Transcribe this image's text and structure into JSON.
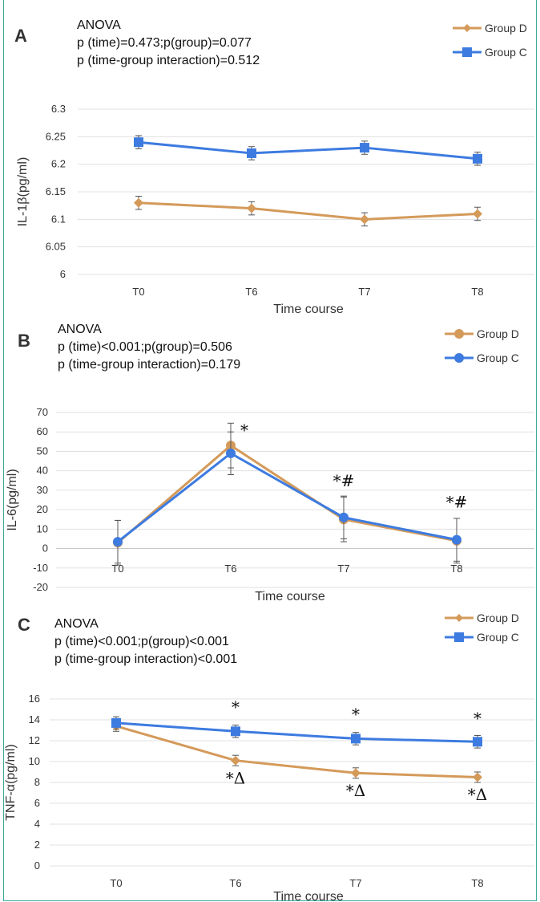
{
  "chart_data": [
    {
      "type": "line",
      "panel": "A",
      "anova": [
        "ANOVA",
        "p (time)=0.473;p(group)=0.077",
        "p (time-group interaction)=0.512"
      ],
      "categories": [
        "T0",
        "T6",
        "T7",
        "T8"
      ],
      "xlabel": "Time course",
      "ylabel": "IL-1β(pg/ml)",
      "ylim": [
        6,
        6.3
      ],
      "yticks": [
        "6",
        "6.05",
        "6.1",
        "6.15",
        "6.2",
        "6.25",
        "6.3"
      ],
      "grid": true,
      "legend_position": "top-right",
      "marker": "diamond-square",
      "series": [
        {
          "name": "Group D",
          "color": "#d49a5a",
          "values": [
            6.13,
            6.12,
            6.1,
            6.11
          ],
          "errors": [
            0.012,
            0.012,
            0.012,
            0.012
          ]
        },
        {
          "name": "Group C",
          "color": "#3d7be0",
          "values": [
            6.24,
            6.22,
            6.23,
            6.21
          ],
          "errors": [
            0.012,
            0.012,
            0.012,
            0.012
          ]
        }
      ],
      "annotations": []
    },
    {
      "type": "line",
      "panel": "B",
      "anova": [
        "ANOVA",
        "p (time)<0.001;p(group)=0.506",
        "p (time-group interaction)=0.179"
      ],
      "categories": [
        "T0",
        "T6",
        "T7",
        "T8"
      ],
      "xlabel": "Time course",
      "ylabel": "IL-6(pg/ml)",
      "ylim": [
        -20,
        70
      ],
      "yticks": [
        "-20",
        "-10",
        "0",
        "10",
        "20",
        "30",
        "40",
        "50",
        "60",
        "70"
      ],
      "grid": true,
      "legend_position": "top-right",
      "marker": "circle",
      "series": [
        {
          "name": "Group D",
          "color": "#d49a5a",
          "values": [
            3,
            53,
            15,
            4
          ],
          "errors": [
            11.5,
            11.5,
            11.5,
            11.5
          ]
        },
        {
          "name": "Group C",
          "color": "#3d7be0",
          "values": [
            3.5,
            49,
            16,
            4.5
          ],
          "errors": [
            11,
            11,
            11,
            11
          ]
        }
      ],
      "annotations": [
        {
          "category": "T6",
          "text": "*",
          "value": 58
        },
        {
          "category": "T7",
          "text": "*#",
          "value": 32
        },
        {
          "category": "T8",
          "text": "*#",
          "value": 21
        }
      ]
    },
    {
      "type": "line",
      "panel": "C",
      "anova": [
        "ANOVA",
        "p (time)<0.001;p(group)<0.001",
        "p (time-group interaction)<0.001"
      ],
      "categories": [
        "T0",
        "T6",
        "T7",
        "T8"
      ],
      "xlabel": "Time course",
      "ylabel": "TNF-α(pg/ml)",
      "ylim": [
        0,
        16
      ],
      "yticks": [
        "0",
        "2",
        "4",
        "6",
        "8",
        "10",
        "12",
        "14",
        "16"
      ],
      "grid": true,
      "legend_position": "top-right",
      "marker": "diamond-square",
      "series": [
        {
          "name": "Group D",
          "color": "#d49a5a",
          "values": [
            13.4,
            10.1,
            8.9,
            8.5
          ],
          "errors": [
            0.5,
            0.5,
            0.5,
            0.5
          ]
        },
        {
          "name": "Group C",
          "color": "#3d7be0",
          "values": [
            13.7,
            12.9,
            12.2,
            11.9
          ],
          "errors": [
            0.6,
            0.6,
            0.6,
            0.6
          ]
        }
      ],
      "annotations": [
        {
          "category": "T6",
          "text": "*",
          "value": 14.7
        },
        {
          "category": "T7",
          "text": "*",
          "value": 14.0
        },
        {
          "category": "T8",
          "text": "*",
          "value": 13.6
        },
        {
          "category": "T6",
          "text": "*Δ",
          "value": 7.9
        },
        {
          "category": "T7",
          "text": "*Δ",
          "value": 6.7
        },
        {
          "category": "T8",
          "text": "*Δ",
          "value": 6.3
        }
      ]
    }
  ]
}
